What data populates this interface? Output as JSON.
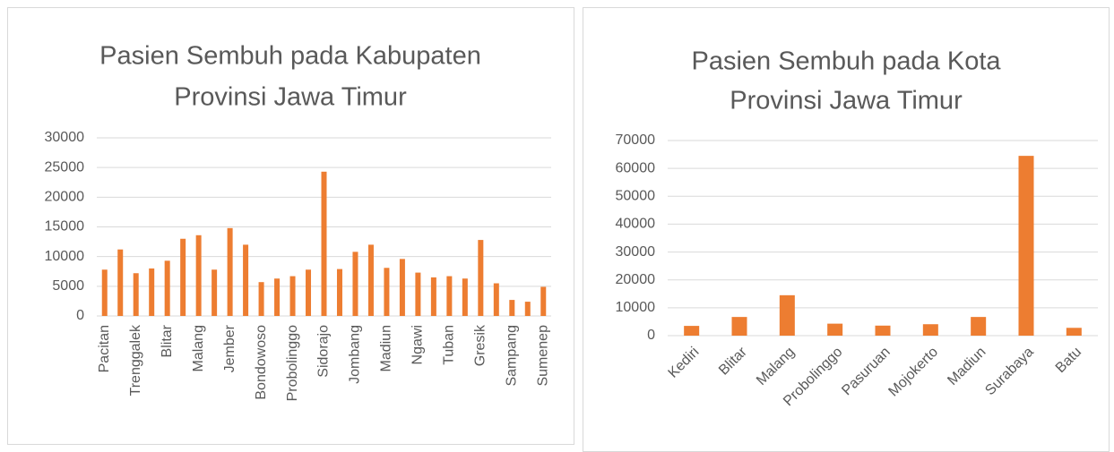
{
  "chart_data": [
    {
      "type": "bar",
      "title": [
        "Pasien Sembuh pada Kabupaten",
        "Provinsi Jawa Timur"
      ],
      "categories": [
        "Pacitan",
        null,
        "Trenggalek",
        null,
        "Blitar",
        null,
        "Malang",
        null,
        "Jember",
        null,
        "Bondowoso",
        null,
        "Probolinggo",
        null,
        "Sidorajo",
        null,
        "Jombang",
        null,
        "Madiun",
        null,
        "Ngawi",
        null,
        "Tuban",
        null,
        "Gresik",
        null,
        "Sampang",
        null,
        "Sumenep"
      ],
      "values": [
        7800,
        11200,
        7200,
        8000,
        9300,
        13000,
        13600,
        7800,
        14800,
        12000,
        5700,
        6300,
        6700,
        7800,
        24300,
        7900,
        10800,
        12000,
        8100,
        9600,
        7300,
        6500,
        6700,
        6300,
        12800,
        5500,
        2700,
        2400,
        4900
      ],
      "color": "#ed7d31",
      "ylim": [
        0,
        30000
      ],
      "yticks": [
        0,
        5000,
        10000,
        15000,
        20000,
        25000,
        30000
      ],
      "grid": true
    },
    {
      "type": "bar",
      "title": [
        "Pasien Sembuh pada Kota",
        "Provinsi Jawa Timur"
      ],
      "categories": [
        "Kediri",
        "Blitar",
        "Malang",
        "Probolinggo",
        "Pasuruan",
        "Mojokerto",
        "Madiun",
        "Surabaya",
        "Batu"
      ],
      "values": [
        3500,
        6700,
        14500,
        4300,
        3600,
        4100,
        6700,
        64500,
        2800
      ],
      "color": "#ed7d31",
      "ylim": [
        0,
        70000
      ],
      "yticks": [
        0,
        10000,
        20000,
        30000,
        40000,
        50000,
        60000,
        70000
      ],
      "grid": true
    }
  ]
}
